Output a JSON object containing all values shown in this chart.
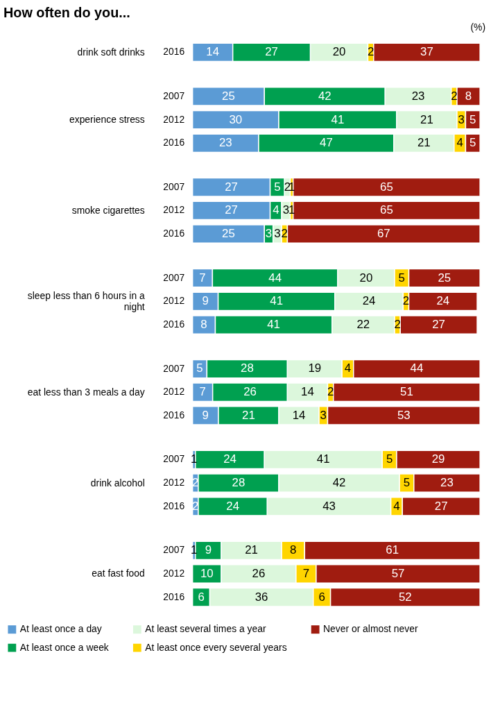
{
  "chart_data": [
    {
      "type": "bar",
      "orientation": "horizontal",
      "stacked": true,
      "data_labels": true,
      "legend": false,
      "title": "How often do you...",
      "annotations": [
        "(%)"
      ],
      "ylabel": "drink soft drinks",
      "categories": [
        "2016"
      ],
      "series": [
        {
          "color": "#5b9bd5",
          "values": [
            14
          ]
        },
        {
          "color": "#00a050",
          "values": [
            27
          ]
        },
        {
          "color": "#dcf7dc",
          "values": [
            20
          ]
        },
        {
          "color": "#ffd500",
          "values": [
            2
          ]
        },
        {
          "color": "#a01c10",
          "values": [
            37
          ]
        }
      ]
    },
    {
      "type": "bar",
      "orientation": "horizontal",
      "stacked": true,
      "data_labels": true,
      "legend": false,
      "ylabel": "experience stress",
      "categories": [
        "2007",
        "2012",
        "2016"
      ],
      "series": [
        {
          "color": "#5b9bd5",
          "values": [
            25,
            30,
            23
          ]
        },
        {
          "color": "#00a050",
          "values": [
            42,
            41,
            47
          ]
        },
        {
          "color": "#dcf7dc",
          "values": [
            23,
            21,
            21
          ]
        },
        {
          "color": "#ffd500",
          "values": [
            2,
            3,
            4
          ]
        },
        {
          "color": "#a01c10",
          "values": [
            8,
            5,
            5
          ]
        }
      ]
    },
    {
      "type": "bar",
      "orientation": "horizontal",
      "stacked": true,
      "data_labels": true,
      "legend": false,
      "ylabel": "smoke cigarettes",
      "categories": [
        "2007",
        "2012",
        "2016"
      ],
      "series": [
        {
          "color": "#5b9bd5",
          "values": [
            27,
            27,
            25
          ]
        },
        {
          "color": "#00a050",
          "values": [
            5,
            4,
            3
          ]
        },
        {
          "color": "#dcf7dc",
          "values": [
            2,
            3,
            3
          ]
        },
        {
          "color": "#ffd500",
          "values": [
            1,
            1,
            2
          ]
        },
        {
          "color": "#a01c10",
          "values": [
            65,
            65,
            67
          ]
        }
      ]
    },
    {
      "type": "bar",
      "orientation": "horizontal",
      "stacked": true,
      "data_labels": true,
      "legend": false,
      "ylabel": "sleep less than 6 hours in a night",
      "categories": [
        "2007",
        "2012",
        "2016"
      ],
      "series": [
        {
          "color": "#5b9bd5",
          "values": [
            7,
            9,
            8
          ]
        },
        {
          "color": "#00a050",
          "values": [
            44,
            41,
            41
          ]
        },
        {
          "color": "#dcf7dc",
          "values": [
            20,
            24,
            22
          ]
        },
        {
          "color": "#ffd500",
          "values": [
            5,
            2,
            2
          ]
        },
        {
          "color": "#a01c10",
          "values": [
            25,
            24,
            27
          ]
        }
      ]
    },
    {
      "type": "bar",
      "orientation": "horizontal",
      "stacked": true,
      "data_labels": true,
      "legend": false,
      "ylabel": "eat less than 3 meals a day",
      "categories": [
        "2007",
        "2012",
        "2016"
      ],
      "series": [
        {
          "color": "#5b9bd5",
          "values": [
            5,
            7,
            9
          ]
        },
        {
          "color": "#00a050",
          "values": [
            28,
            26,
            21
          ]
        },
        {
          "color": "#dcf7dc",
          "values": [
            19,
            14,
            14
          ]
        },
        {
          "color": "#ffd500",
          "values": [
            4,
            2,
            3
          ]
        },
        {
          "color": "#a01c10",
          "values": [
            44,
            51,
            53
          ]
        }
      ]
    },
    {
      "type": "bar",
      "orientation": "horizontal",
      "stacked": true,
      "data_labels": true,
      "legend": false,
      "ylabel": "drink alcohol",
      "categories": [
        "2007",
        "2012",
        "2016"
      ],
      "series": [
        {
          "color": "#5b9bd5",
          "values": [
            1,
            2,
            2
          ]
        },
        {
          "color": "#00a050",
          "values": [
            24,
            28,
            24
          ]
        },
        {
          "color": "#dcf7dc",
          "values": [
            41,
            42,
            43
          ]
        },
        {
          "color": "#ffd500",
          "values": [
            5,
            5,
            4
          ]
        },
        {
          "color": "#a01c10",
          "values": [
            29,
            23,
            27
          ]
        }
      ]
    },
    {
      "type": "bar",
      "orientation": "horizontal",
      "stacked": true,
      "data_labels": true,
      "legend": "bottom",
      "ylabel": "eat fast food",
      "categories": [
        "2007",
        "2012",
        "2016"
      ],
      "series": [
        {
          "name": "At least once a day",
          "color": "#5b9bd5",
          "values": [
            1,
            null,
            null
          ]
        },
        {
          "name": "At least once a week",
          "color": "#00a050",
          "values": [
            9,
            10,
            6
          ]
        },
        {
          "name": "At least several times a year",
          "color": "#dcf7dc",
          "values": [
            21,
            26,
            36
          ]
        },
        {
          "name": "At least once every several years",
          "color": "#ffd500",
          "values": [
            8,
            7,
            6
          ]
        },
        {
          "name": "Never or almost never",
          "color": "#a01c10",
          "values": [
            61,
            57,
            52
          ]
        }
      ]
    }
  ]
}
